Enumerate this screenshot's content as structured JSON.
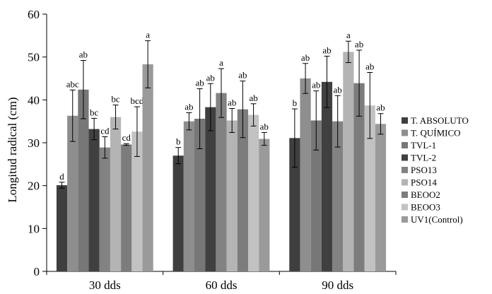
{
  "chart_data": {
    "type": "bar",
    "ylabel": "Longitud radical (cm)",
    "xlabel": "",
    "ylim": [
      0,
      60
    ],
    "yticks": [
      0,
      10,
      20,
      30,
      40,
      50,
      60
    ],
    "grid": false,
    "legend_position": "right",
    "categories": [
      "30 dds",
      "60 dds",
      "90 dds"
    ],
    "series": [
      {
        "name": "T. ABSOLUTO",
        "color": "#3f3f3f",
        "values": [
          20.1,
          27.0,
          31.1
        ],
        "errors": [
          0.7,
          1.9,
          6.8
        ],
        "labels": [
          "d",
          "b",
          "b"
        ]
      },
      {
        "name": "T. QUÍMICO",
        "color": "#8e8e8e",
        "values": [
          36.3,
          35.0,
          45.0
        ],
        "errors": [
          6.0,
          2.0,
          3.5
        ],
        "labels": [
          "abc",
          "ab",
          "ab"
        ]
      },
      {
        "name": "TVL-1",
        "color": "#777777",
        "values": [
          42.4,
          35.6,
          35.2
        ],
        "errors": [
          6.8,
          7.0,
          6.9
        ],
        "labels": [
          "ab",
          "ab",
          "ab"
        ]
      },
      {
        "name": "TVL-2",
        "color": "#404040",
        "values": [
          33.2,
          38.3,
          44.2
        ],
        "errors": [
          2.5,
          5.5,
          6.0
        ],
        "labels": [
          "bc",
          "ab",
          "ab"
        ]
      },
      {
        "name": "PSO13",
        "color": "#828282",
        "values": [
          28.9,
          41.6,
          35.0
        ],
        "errors": [
          2.5,
          5.7,
          6.0
        ],
        "labels": [
          "cd",
          "a",
          "ab"
        ]
      },
      {
        "name": "PSO14",
        "color": "#b4b4b4",
        "values": [
          36.0,
          35.2,
          51.2
        ],
        "errors": [
          2.8,
          2.8,
          2.5
        ],
        "labels": [
          "bc",
          "ab",
          "a"
        ]
      },
      {
        "name": "BEOO2",
        "color": "#7c7c7c",
        "values": [
          29.6,
          37.8,
          43.9
        ],
        "errors": [
          0.2,
          6.6,
          7.7
        ],
        "labels": [
          "cd",
          "ab",
          "ab"
        ]
      },
      {
        "name": "BEOO3",
        "color": "#c2c2c2",
        "values": [
          32.6,
          36.5,
          38.7
        ],
        "errors": [
          5.8,
          2.6,
          7.7
        ],
        "labels": [
          "bcd",
          "ab",
          "ab"
        ]
      },
      {
        "name": "UV1(Control)",
        "color": "#9a9a9a",
        "values": [
          48.3,
          30.9,
          34.4
        ],
        "errors": [
          5.5,
          1.5,
          2.4
        ],
        "labels": [
          "a",
          "ab",
          "ab"
        ]
      }
    ]
  }
}
